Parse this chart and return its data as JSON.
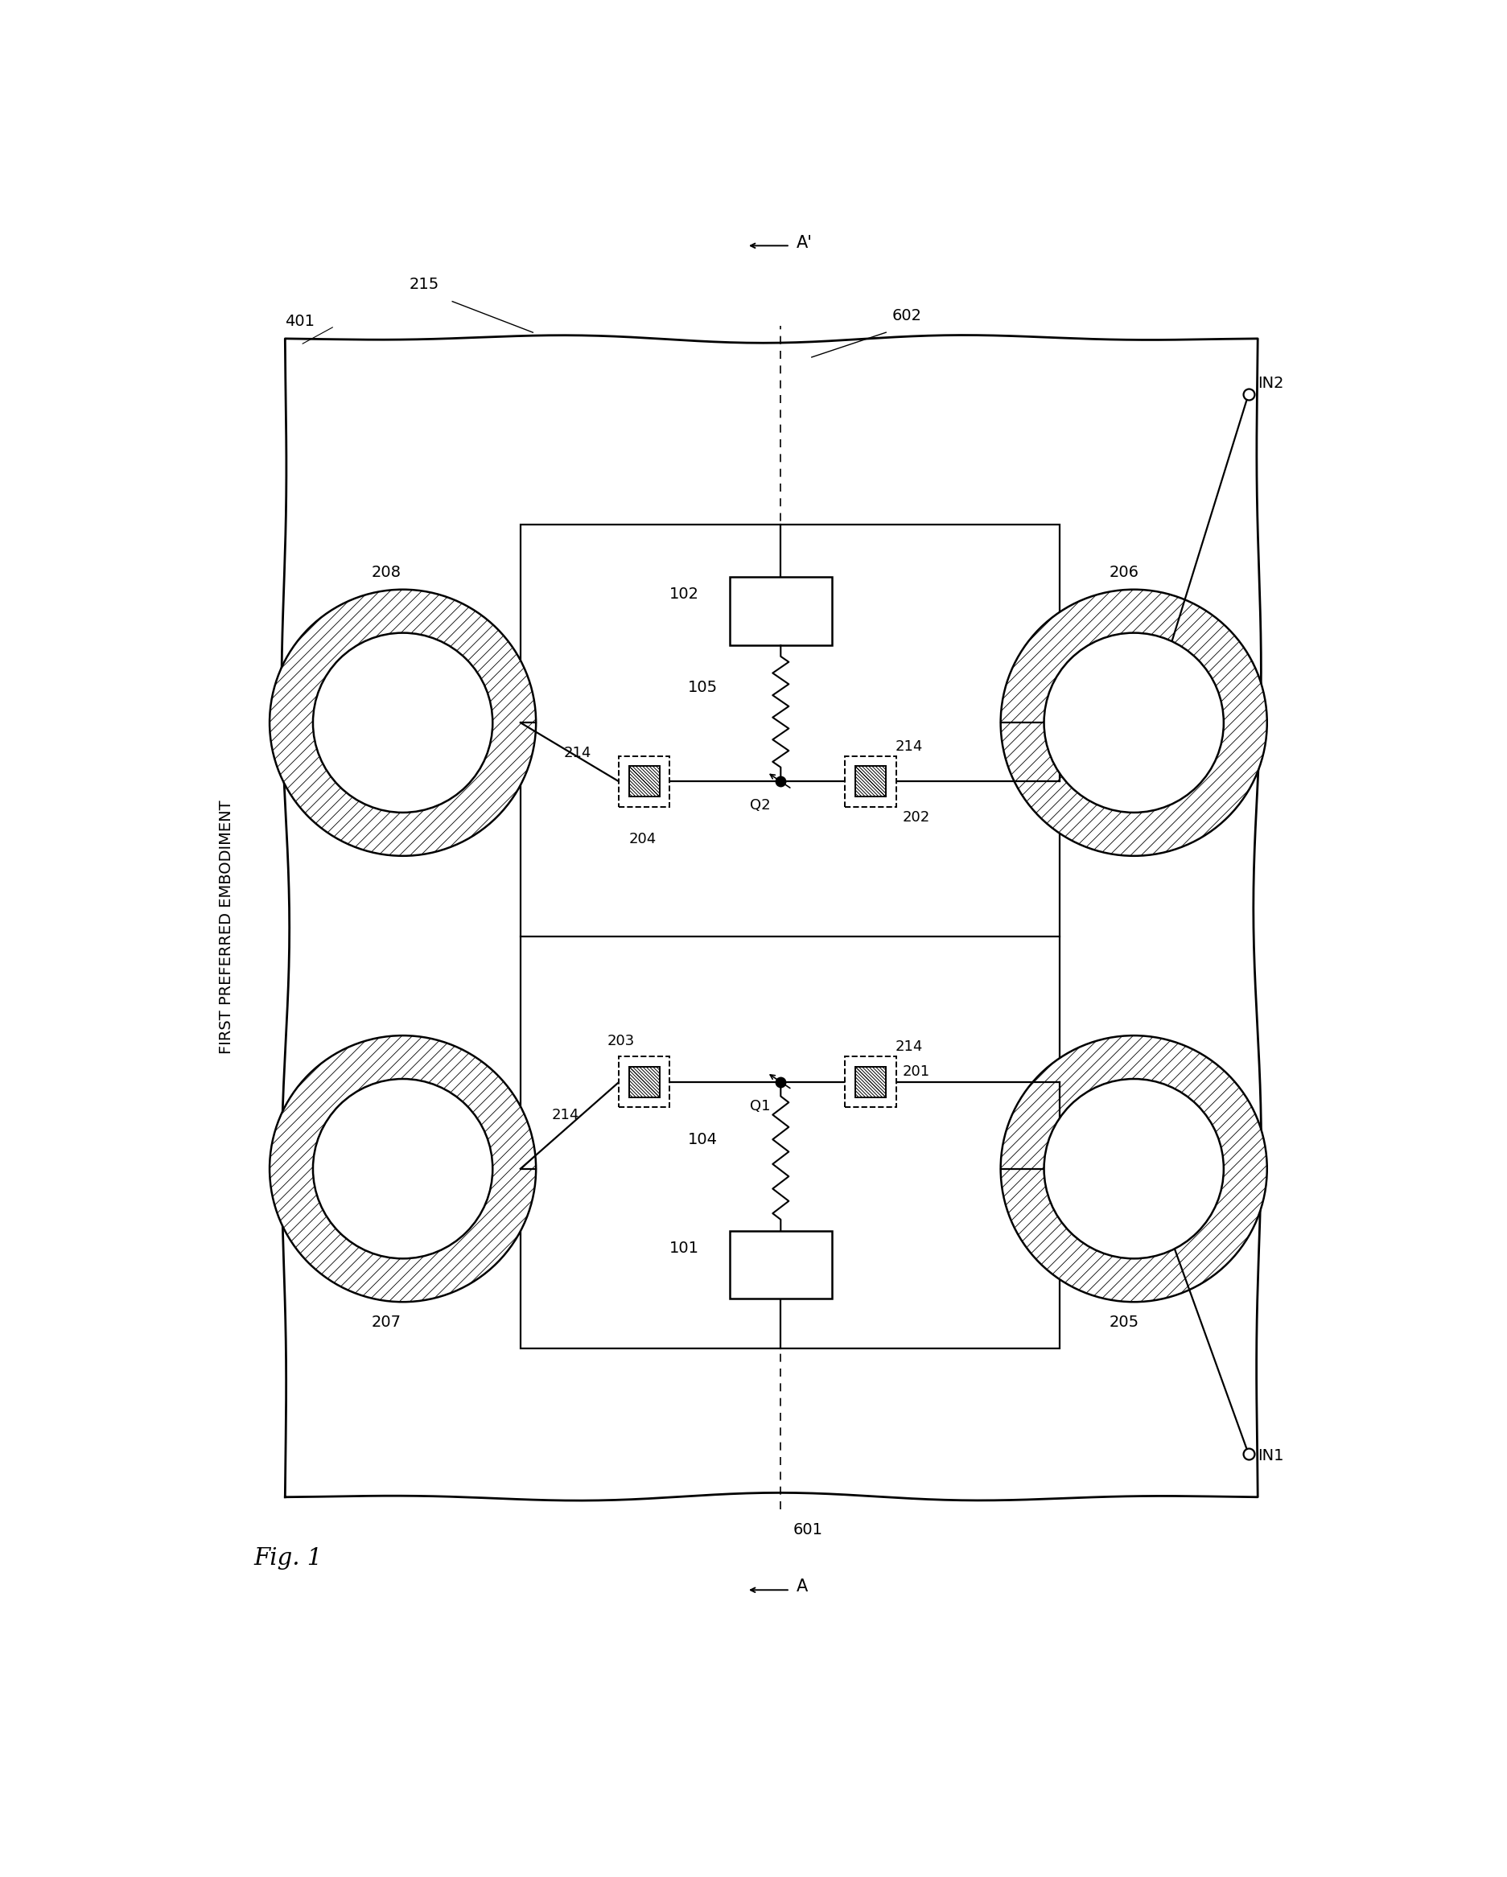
{
  "fig_title": "Fig. 1",
  "subtitle": "FIRST PREFERRED EMBODIMENT",
  "label_401": "401",
  "label_215": "215",
  "label_601": "601",
  "label_602": "602",
  "label_A": "A",
  "label_Aprime": "A'",
  "label_102": "102",
  "label_101": "101",
  "label_Q1": "Q1",
  "label_Q2": "Q2",
  "label_201": "201",
  "label_202": "202",
  "label_203": "203",
  "label_204": "204",
  "label_105": "105",
  "label_104": "104",
  "label_205": "205",
  "label_206": "206",
  "label_207": "207",
  "label_208": "208",
  "label_214": "214",
  "label_IN1": "IN1",
  "label_IN2": "IN2",
  "bg_color": "#ffffff",
  "line_color": "#000000"
}
